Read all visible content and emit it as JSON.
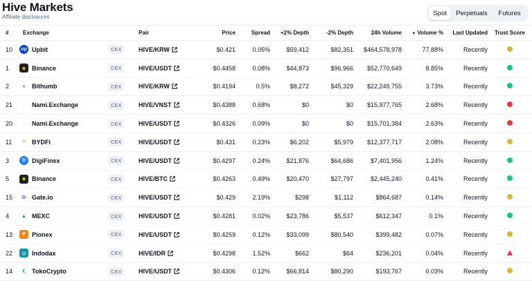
{
  "page": {
    "title": "Hive Markets",
    "subtitle": "Affiliate disclosures"
  },
  "tabs": [
    {
      "label": "Spot",
      "active": true
    },
    {
      "label": "Perpetuals",
      "active": false
    },
    {
      "label": "Futures",
      "active": false
    }
  ],
  "columns": {
    "num": "#",
    "exchange": "Exchange",
    "pair": "Pair",
    "price": "Price",
    "spread": "Spread",
    "depth_plus": "+2% Depth",
    "depth_minus": "-2% Depth",
    "volume_24h": "24h Volume",
    "volume_pct": "Volume %",
    "last_updated": "Last Updated",
    "trust_score": "Trust Score"
  },
  "sort": {
    "column": "volume_pct",
    "direction": "desc"
  },
  "colors": {
    "trust_yellow": "#d9b73a",
    "trust_green": "#16c784",
    "trust_red": "#ea3943",
    "accent": "#0d1421",
    "muted": "#58667e"
  },
  "rows": [
    {
      "num": "10",
      "exchange": "Upbit",
      "logo_icon": "upbit-logo-icon",
      "type": "CEX",
      "pair": "HIVE/KRW",
      "price": "$0.421",
      "spread": "0.05%",
      "depth_plus": "$59,412",
      "depth_minus": "$82,351",
      "volume_24h": "$464,578,978",
      "volume_pct": "77.88%",
      "last_updated": "Recently",
      "trust": "yellow"
    },
    {
      "num": "1",
      "exchange": "Binance",
      "logo_icon": "binance-logo-icon",
      "type": "CEX",
      "pair": "HIVE/USDT",
      "price": "$0.4458",
      "spread": "0.08%",
      "depth_plus": "$44,873",
      "depth_minus": "$96,966",
      "volume_24h": "$52,770,649",
      "volume_pct": "8.85%",
      "last_updated": "Recently",
      "trust": "green"
    },
    {
      "num": "2",
      "exchange": "Bithumb",
      "logo_icon": "bithumb-logo-icon",
      "type": "CEX",
      "pair": "HIVE/KRW",
      "price": "$0.4194",
      "spread": "0.5%",
      "depth_plus": "$8,272",
      "depth_minus": "$45,329",
      "volume_24h": "$22,249,755",
      "volume_pct": "3.73%",
      "last_updated": "Recently",
      "trust": "green"
    },
    {
      "num": "21",
      "exchange": "Nami.Exchange",
      "logo_icon": "nami-logo-icon",
      "type": "CEX",
      "pair": "HIVE/VNST",
      "price": "$0.4388",
      "spread": "0.68%",
      "depth_plus": "$0",
      "depth_minus": "$0",
      "volume_24h": "$15,977,765",
      "volume_pct": "2.68%",
      "last_updated": "Recently",
      "trust": "red"
    },
    {
      "num": "20",
      "exchange": "Nami.Exchange",
      "logo_icon": "nami-logo-icon",
      "type": "CEX",
      "pair": "HIVE/USDT",
      "price": "$0.4326",
      "spread": "0.09%",
      "depth_plus": "$0",
      "depth_minus": "$0",
      "volume_24h": "$15,701,384",
      "volume_pct": "2.63%",
      "last_updated": "Recently",
      "trust": "red"
    },
    {
      "num": "11",
      "exchange": "BYDFi",
      "logo_icon": "bydfi-logo-icon",
      "type": "CEX",
      "pair": "HIVE/USDT",
      "price": "$0.431",
      "spread": "0.23%",
      "depth_plus": "$6,202",
      "depth_minus": "$5,979",
      "volume_24h": "$12,377,717",
      "volume_pct": "2.08%",
      "last_updated": "Recently",
      "trust": "yellow"
    },
    {
      "num": "3",
      "exchange": "DigiFinex",
      "logo_icon": "digifinex-logo-icon",
      "type": "CEX",
      "pair": "HIVE/USDT",
      "price": "$0.4297",
      "spread": "0.24%",
      "depth_plus": "$21,876",
      "depth_minus": "$64,686",
      "volume_24h": "$7,401,956",
      "volume_pct": "1.24%",
      "last_updated": "Recently",
      "trust": "green"
    },
    {
      "num": "5",
      "exchange": "Binance",
      "logo_icon": "binance-logo-icon",
      "type": "CEX",
      "pair": "HIVE/BTC",
      "price": "$0.4263",
      "spread": "0.49%",
      "depth_plus": "$20,470",
      "depth_minus": "$27,797",
      "volume_24h": "$2,445,240",
      "volume_pct": "0.41%",
      "last_updated": "Recently",
      "trust": "green"
    },
    {
      "num": "15",
      "exchange": "Gate.io",
      "logo_icon": "gateio-logo-icon",
      "type": "CEX",
      "pair": "HIVE/USDT",
      "price": "$0.429",
      "spread": "2.19%",
      "depth_plus": "$298",
      "depth_minus": "$1,112",
      "volume_24h": "$864,687",
      "volume_pct": "0.14%",
      "last_updated": "Recently",
      "trust": "yellow"
    },
    {
      "num": "4",
      "exchange": "MEXC",
      "logo_icon": "mexc-logo-icon",
      "type": "CEX",
      "pair": "HIVE/USDT",
      "price": "$0.4281",
      "spread": "0.02%",
      "depth_plus": "$23,786",
      "depth_minus": "$5,537",
      "volume_24h": "$612,347",
      "volume_pct": "0.1%",
      "last_updated": "Recently",
      "trust": "green"
    },
    {
      "num": "13",
      "exchange": "Pionex",
      "logo_icon": "pionex-logo-icon",
      "type": "CEX",
      "pair": "HIVE/USDT",
      "price": "$0.4259",
      "spread": "0.12%",
      "depth_plus": "$33,099",
      "depth_minus": "$80,540",
      "volume_24h": "$399,482",
      "volume_pct": "0.07%",
      "last_updated": "Recently",
      "trust": "yellow"
    },
    {
      "num": "22",
      "exchange": "Indodax",
      "logo_icon": "indodax-logo-icon",
      "type": "CEX",
      "pair": "HIVE/IDR",
      "price": "$0.4298",
      "spread": "1.52%",
      "depth_plus": "$662",
      "depth_minus": "$64",
      "volume_24h": "$236,201",
      "volume_pct": "0.04%",
      "last_updated": "Recently",
      "trust": "red-warning"
    },
    {
      "num": "14",
      "exchange": "TokoCrypto",
      "logo_icon": "tokocrypto-logo-icon",
      "type": "CEX",
      "pair": "HIVE/USDT",
      "price": "$0.4306",
      "spread": "0.12%",
      "depth_plus": "$66,814",
      "depth_minus": "$80,290",
      "volume_24h": "$193,767",
      "volume_pct": "0.03%",
      "last_updated": "Recently",
      "trust": "yellow"
    }
  ]
}
